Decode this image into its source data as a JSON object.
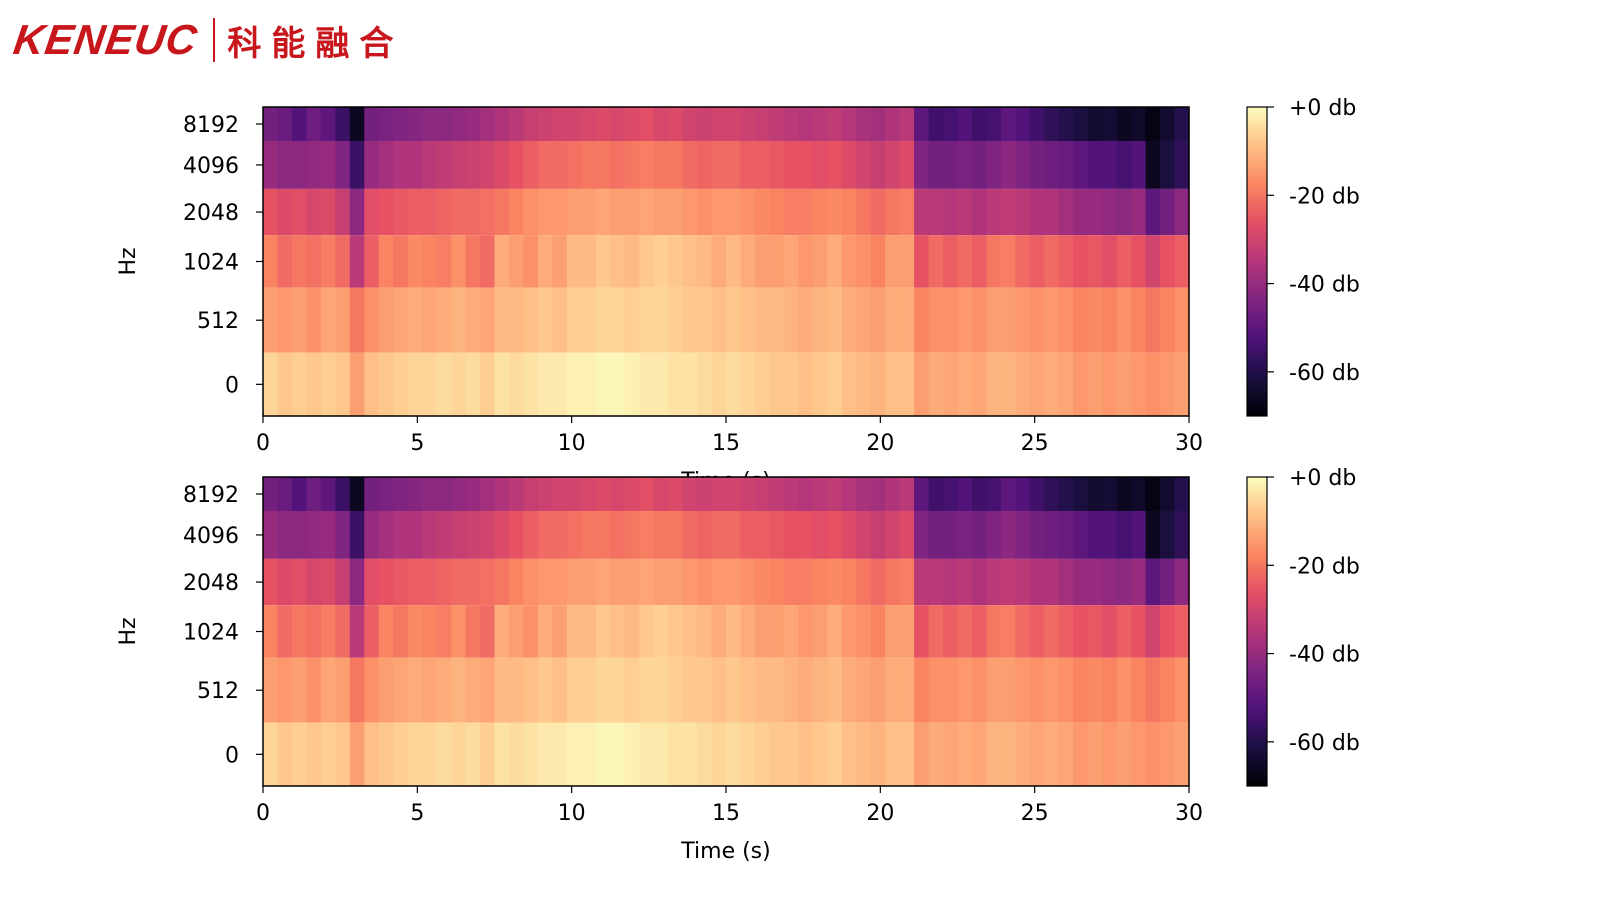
{
  "logo": {
    "latin": "KENEUC",
    "chinese": "科能融合",
    "color": "#c8161d"
  },
  "chart_data": [
    {
      "type": "heatmap",
      "title": "",
      "xlabel": "Time (s)",
      "ylabel": "Hz",
      "xlim": [
        0,
        30
      ],
      "x_ticks": [
        0,
        5,
        10,
        15,
        20,
        25,
        30
      ],
      "y_tick_labels": [
        "8192",
        "4096",
        "2048",
        "1024",
        "512",
        "0"
      ],
      "colorbar": {
        "ticks": [
          "+0 db",
          "-20 db",
          "-40 db",
          "-60 db"
        ],
        "tick_values": [
          0,
          -20,
          -40,
          -60
        ],
        "range": [
          -70,
          0
        ],
        "colormap": "magma"
      },
      "bands_db": [
        {
          "label": "8192",
          "values": [
            -46,
            -48,
            -52,
            -47,
            -50,
            -56,
            -66,
            -46,
            -45,
            -44,
            -43,
            -42,
            -42,
            -41,
            -40,
            -38,
            -36,
            -34,
            -32,
            -31,
            -30,
            -30,
            -29,
            -28,
            -29,
            -28,
            -27,
            -29,
            -28,
            -30,
            -31,
            -30,
            -30,
            -31,
            -32,
            -33,
            -34,
            -35,
            -34,
            -33,
            -35,
            -37,
            -38,
            -36,
            -34,
            -50,
            -55,
            -54,
            -52,
            -55,
            -54,
            -50,
            -52,
            -55,
            -58,
            -60,
            -62,
            -64,
            -63,
            -66,
            -65,
            -68,
            -64,
            -60
          ]
        },
        {
          "label": "4096",
          "values": [
            -40,
            -42,
            -42,
            -41,
            -40,
            -44,
            -56,
            -40,
            -38,
            -36,
            -36,
            -34,
            -33,
            -32,
            -31,
            -30,
            -28,
            -26,
            -24,
            -22,
            -22,
            -21,
            -20,
            -20,
            -21,
            -20,
            -19,
            -20,
            -20,
            -22,
            -23,
            -22,
            -22,
            -24,
            -24,
            -25,
            -26,
            -26,
            -27,
            -26,
            -28,
            -30,
            -32,
            -30,
            -28,
            -44,
            -46,
            -46,
            -45,
            -46,
            -44,
            -42,
            -44,
            -46,
            -47,
            -48,
            -50,
            -52,
            -52,
            -54,
            -52,
            -66,
            -62,
            -58
          ]
        },
        {
          "label": "2048",
          "values": [
            -26,
            -28,
            -27,
            -29,
            -28,
            -32,
            -42,
            -27,
            -26,
            -25,
            -24,
            -24,
            -23,
            -22,
            -22,
            -21,
            -20,
            -18,
            -16,
            -15,
            -15,
            -14,
            -14,
            -13,
            -14,
            -14,
            -13,
            -14,
            -14,
            -15,
            -16,
            -15,
            -15,
            -16,
            -17,
            -18,
            -19,
            -19,
            -18,
            -17,
            -18,
            -20,
            -22,
            -20,
            -19,
            -34,
            -34,
            -35,
            -34,
            -36,
            -34,
            -33,
            -34,
            -36,
            -36,
            -38,
            -40,
            -40,
            -41,
            -42,
            -40,
            -50,
            -46,
            -42
          ]
        },
        {
          "label": "1024",
          "values": [
            -18,
            -22,
            -20,
            -21,
            -19,
            -22,
            -34,
            -24,
            -18,
            -20,
            -17,
            -18,
            -19,
            -16,
            -20,
            -22,
            -12,
            -14,
            -16,
            -12,
            -14,
            -10,
            -10,
            -8,
            -9,
            -10,
            -8,
            -7,
            -8,
            -9,
            -10,
            -12,
            -10,
            -12,
            -14,
            -14,
            -13,
            -15,
            -14,
            -12,
            -15,
            -16,
            -18,
            -14,
            -14,
            -26,
            -22,
            -24,
            -22,
            -24,
            -20,
            -19,
            -22,
            -24,
            -22,
            -24,
            -26,
            -25,
            -27,
            -24,
            -26,
            -30,
            -26,
            -24
          ]
        },
        {
          "label": "512",
          "values": [
            -14,
            -15,
            -14,
            -16,
            -13,
            -14,
            -20,
            -16,
            -14,
            -13,
            -12,
            -13,
            -12,
            -11,
            -12,
            -13,
            -10,
            -10,
            -9,
            -8,
            -9,
            -7,
            -7,
            -6,
            -6,
            -7,
            -6,
            -6,
            -7,
            -8,
            -8,
            -9,
            -8,
            -9,
            -10,
            -10,
            -11,
            -12,
            -11,
            -10,
            -12,
            -13,
            -14,
            -12,
            -12,
            -18,
            -16,
            -16,
            -15,
            -16,
            -14,
            -14,
            -15,
            -16,
            -15,
            -16,
            -18,
            -17,
            -18,
            -16,
            -18,
            -20,
            -18,
            -16
          ]
        },
        {
          "label": "0",
          "values": [
            -6,
            -8,
            -7,
            -8,
            -7,
            -8,
            -14,
            -9,
            -8,
            -7,
            -6,
            -6,
            -5,
            -6,
            -5,
            -7,
            -4,
            -5,
            -4,
            -3,
            -3,
            -2,
            -2,
            -1,
            -1,
            -2,
            -3,
            -3,
            -4,
            -4,
            -5,
            -6,
            -5,
            -6,
            -7,
            -8,
            -8,
            -9,
            -8,
            -7,
            -9,
            -10,
            -11,
            -9,
            -9,
            -14,
            -12,
            -13,
            -12,
            -13,
            -11,
            -11,
            -12,
            -13,
            -12,
            -13,
            -15,
            -14,
            -15,
            -14,
            -15,
            -16,
            -15,
            -14
          ]
        }
      ]
    },
    {
      "type": "heatmap",
      "title": "",
      "xlabel": "Time (s)",
      "ylabel": "Hz",
      "xlim": [
        0,
        30
      ],
      "x_ticks": [
        0,
        5,
        10,
        15,
        20,
        25,
        30
      ],
      "y_tick_labels": [
        "8192",
        "4096",
        "2048",
        "1024",
        "512",
        "0"
      ],
      "colorbar": {
        "ticks": [
          "+0 db",
          "-20 db",
          "-40 db",
          "-60 db"
        ],
        "tick_values": [
          0,
          -20,
          -40,
          -60
        ],
        "range": [
          -70,
          0
        ],
        "colormap": "magma"
      },
      "bands_db": [
        {
          "label": "8192",
          "values": [
            -46,
            -48,
            -52,
            -47,
            -50,
            -56,
            -66,
            -46,
            -45,
            -44,
            -43,
            -42,
            -42,
            -41,
            -40,
            -38,
            -36,
            -34,
            -32,
            -31,
            -30,
            -30,
            -29,
            -28,
            -29,
            -28,
            -27,
            -29,
            -28,
            -30,
            -31,
            -30,
            -30,
            -31,
            -32,
            -33,
            -34,
            -35,
            -34,
            -33,
            -35,
            -37,
            -38,
            -36,
            -34,
            -50,
            -55,
            -54,
            -52,
            -55,
            -54,
            -50,
            -52,
            -55,
            -58,
            -60,
            -62,
            -64,
            -63,
            -66,
            -65,
            -68,
            -64,
            -60
          ]
        },
        {
          "label": "4096",
          "values": [
            -40,
            -42,
            -42,
            -41,
            -40,
            -44,
            -56,
            -40,
            -38,
            -36,
            -36,
            -34,
            -33,
            -32,
            -31,
            -30,
            -28,
            -26,
            -24,
            -22,
            -22,
            -21,
            -20,
            -20,
            -21,
            -20,
            -19,
            -20,
            -20,
            -22,
            -23,
            -22,
            -22,
            -24,
            -24,
            -25,
            -26,
            -26,
            -27,
            -26,
            -28,
            -30,
            -32,
            -30,
            -28,
            -44,
            -46,
            -46,
            -45,
            -46,
            -44,
            -42,
            -44,
            -46,
            -47,
            -48,
            -50,
            -52,
            -52,
            -54,
            -52,
            -66,
            -62,
            -58
          ]
        },
        {
          "label": "2048",
          "values": [
            -26,
            -28,
            -27,
            -29,
            -28,
            -32,
            -42,
            -27,
            -26,
            -25,
            -24,
            -24,
            -23,
            -22,
            -22,
            -21,
            -20,
            -18,
            -16,
            -15,
            -15,
            -14,
            -14,
            -13,
            -14,
            -14,
            -13,
            -14,
            -14,
            -15,
            -16,
            -15,
            -15,
            -16,
            -17,
            -18,
            -19,
            -19,
            -18,
            -17,
            -18,
            -20,
            -22,
            -20,
            -19,
            -34,
            -34,
            -35,
            -34,
            -36,
            -34,
            -33,
            -34,
            -36,
            -36,
            -38,
            -40,
            -40,
            -41,
            -42,
            -40,
            -50,
            -46,
            -42
          ]
        },
        {
          "label": "1024",
          "values": [
            -18,
            -22,
            -20,
            -21,
            -19,
            -22,
            -34,
            -24,
            -18,
            -20,
            -17,
            -18,
            -19,
            -16,
            -20,
            -22,
            -12,
            -14,
            -16,
            -12,
            -14,
            -10,
            -10,
            -8,
            -9,
            -10,
            -8,
            -7,
            -8,
            -9,
            -10,
            -12,
            -10,
            -12,
            -14,
            -14,
            -13,
            -15,
            -14,
            -12,
            -15,
            -16,
            -18,
            -14,
            -14,
            -26,
            -22,
            -24,
            -22,
            -24,
            -20,
            -19,
            -22,
            -24,
            -22,
            -24,
            -26,
            -25,
            -27,
            -24,
            -26,
            -30,
            -26,
            -24
          ]
        },
        {
          "label": "512",
          "values": [
            -14,
            -15,
            -14,
            -16,
            -13,
            -14,
            -20,
            -16,
            -14,
            -13,
            -12,
            -13,
            -12,
            -11,
            -12,
            -13,
            -10,
            -10,
            -9,
            -8,
            -9,
            -7,
            -7,
            -6,
            -6,
            -7,
            -6,
            -6,
            -7,
            -8,
            -8,
            -9,
            -8,
            -9,
            -10,
            -10,
            -11,
            -12,
            -11,
            -10,
            -12,
            -13,
            -14,
            -12,
            -12,
            -18,
            -16,
            -16,
            -15,
            -16,
            -14,
            -14,
            -15,
            -16,
            -15,
            -16,
            -18,
            -17,
            -18,
            -16,
            -18,
            -20,
            -18,
            -16
          ]
        },
        {
          "label": "0",
          "values": [
            -6,
            -8,
            -7,
            -8,
            -7,
            -8,
            -14,
            -9,
            -8,
            -7,
            -6,
            -6,
            -5,
            -6,
            -5,
            -7,
            -4,
            -5,
            -4,
            -3,
            -3,
            -2,
            -2,
            -1,
            -1,
            -2,
            -3,
            -3,
            -4,
            -4,
            -5,
            -6,
            -5,
            -6,
            -7,
            -8,
            -8,
            -9,
            -8,
            -7,
            -9,
            -10,
            -11,
            -9,
            -9,
            -14,
            -12,
            -13,
            -12,
            -13,
            -11,
            -11,
            -12,
            -13,
            -12,
            -13,
            -15,
            -14,
            -15,
            -14,
            -15,
            -16,
            -15,
            -14
          ]
        }
      ]
    }
  ]
}
